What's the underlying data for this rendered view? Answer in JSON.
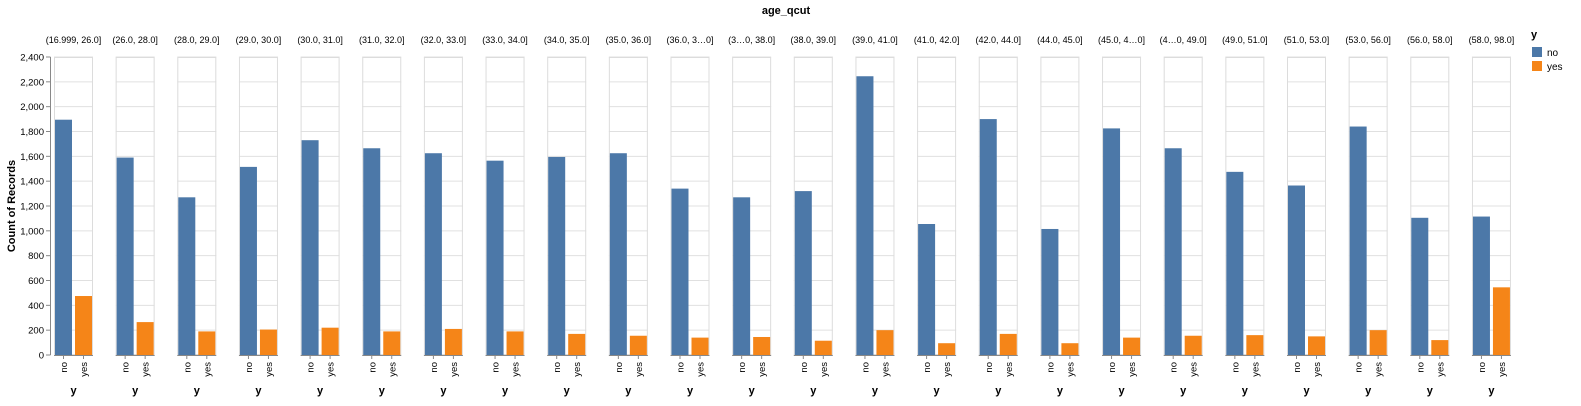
{
  "chart_data": {
    "type": "bar",
    "title": "age_qcut",
    "ylabel": "Count of Records",
    "xlabel": "y",
    "ylim": [
      0,
      2400
    ],
    "yticks": [
      0,
      200,
      400,
      600,
      800,
      1000,
      1200,
      1400,
      1600,
      1800,
      2000,
      2200,
      2400
    ],
    "ytick_labels": [
      "0",
      "200",
      "400",
      "600",
      "800",
      "1,000",
      "1,200",
      "1,400",
      "1,600",
      "1,800",
      "2,000",
      "2,200",
      "2,400"
    ],
    "categories": [
      "no",
      "yes"
    ],
    "colors": {
      "no": "#4c78a8",
      "yes": "#f58518"
    },
    "legend": {
      "title": "y",
      "placement": "right",
      "entries": [
        "no",
        "yes"
      ]
    },
    "grid": true,
    "facets": [
      {
        "label": "(16.999, 26.0]",
        "values": [
          1895,
          475
        ]
      },
      {
        "label": "(26.0, 28.0]",
        "values": [
          1590,
          265
        ]
      },
      {
        "label": "(28.0, 29.0]",
        "values": [
          1270,
          190
        ]
      },
      {
        "label": "(29.0, 30.0]",
        "values": [
          1515,
          205
        ]
      },
      {
        "label": "(30.0, 31.0]",
        "values": [
          1730,
          220
        ]
      },
      {
        "label": "(31.0, 32.0]",
        "values": [
          1665,
          190
        ]
      },
      {
        "label": "(32.0, 33.0]",
        "values": [
          1625,
          210
        ]
      },
      {
        "label": "(33.0, 34.0]",
        "values": [
          1565,
          190
        ]
      },
      {
        "label": "(34.0, 35.0]",
        "values": [
          1595,
          170
        ]
      },
      {
        "label": "(35.0, 36.0]",
        "values": [
          1625,
          155
        ]
      },
      {
        "label": "(36.0, 3…0]",
        "values": [
          1340,
          140
        ]
      },
      {
        "label": "(3…0, 38.0]",
        "values": [
          1270,
          145
        ]
      },
      {
        "label": "(38.0, 39.0]",
        "values": [
          1320,
          115
        ]
      },
      {
        "label": "(39.0, 41.0]",
        "values": [
          2245,
          200
        ]
      },
      {
        "label": "(41.0, 42.0]",
        "values": [
          1055,
          95
        ]
      },
      {
        "label": "(42.0, 44.0]",
        "values": [
          1900,
          170
        ]
      },
      {
        "label": "(44.0, 45.0]",
        "values": [
          1015,
          95
        ]
      },
      {
        "label": "(45.0, 4…0]",
        "values": [
          1825,
          140
        ]
      },
      {
        "label": "(4…0, 49.0]",
        "values": [
          1665,
          155
        ]
      },
      {
        "label": "(49.0, 51.0]",
        "values": [
          1475,
          160
        ]
      },
      {
        "label": "(51.0, 53.0]",
        "values": [
          1365,
          150
        ]
      },
      {
        "label": "(53.0, 56.0]",
        "values": [
          1840,
          200
        ]
      },
      {
        "label": "(56.0, 58.0]",
        "values": [
          1105,
          120
        ]
      },
      {
        "label": "(58.0, 98.0]",
        "values": [
          1115,
          545
        ]
      }
    ]
  }
}
